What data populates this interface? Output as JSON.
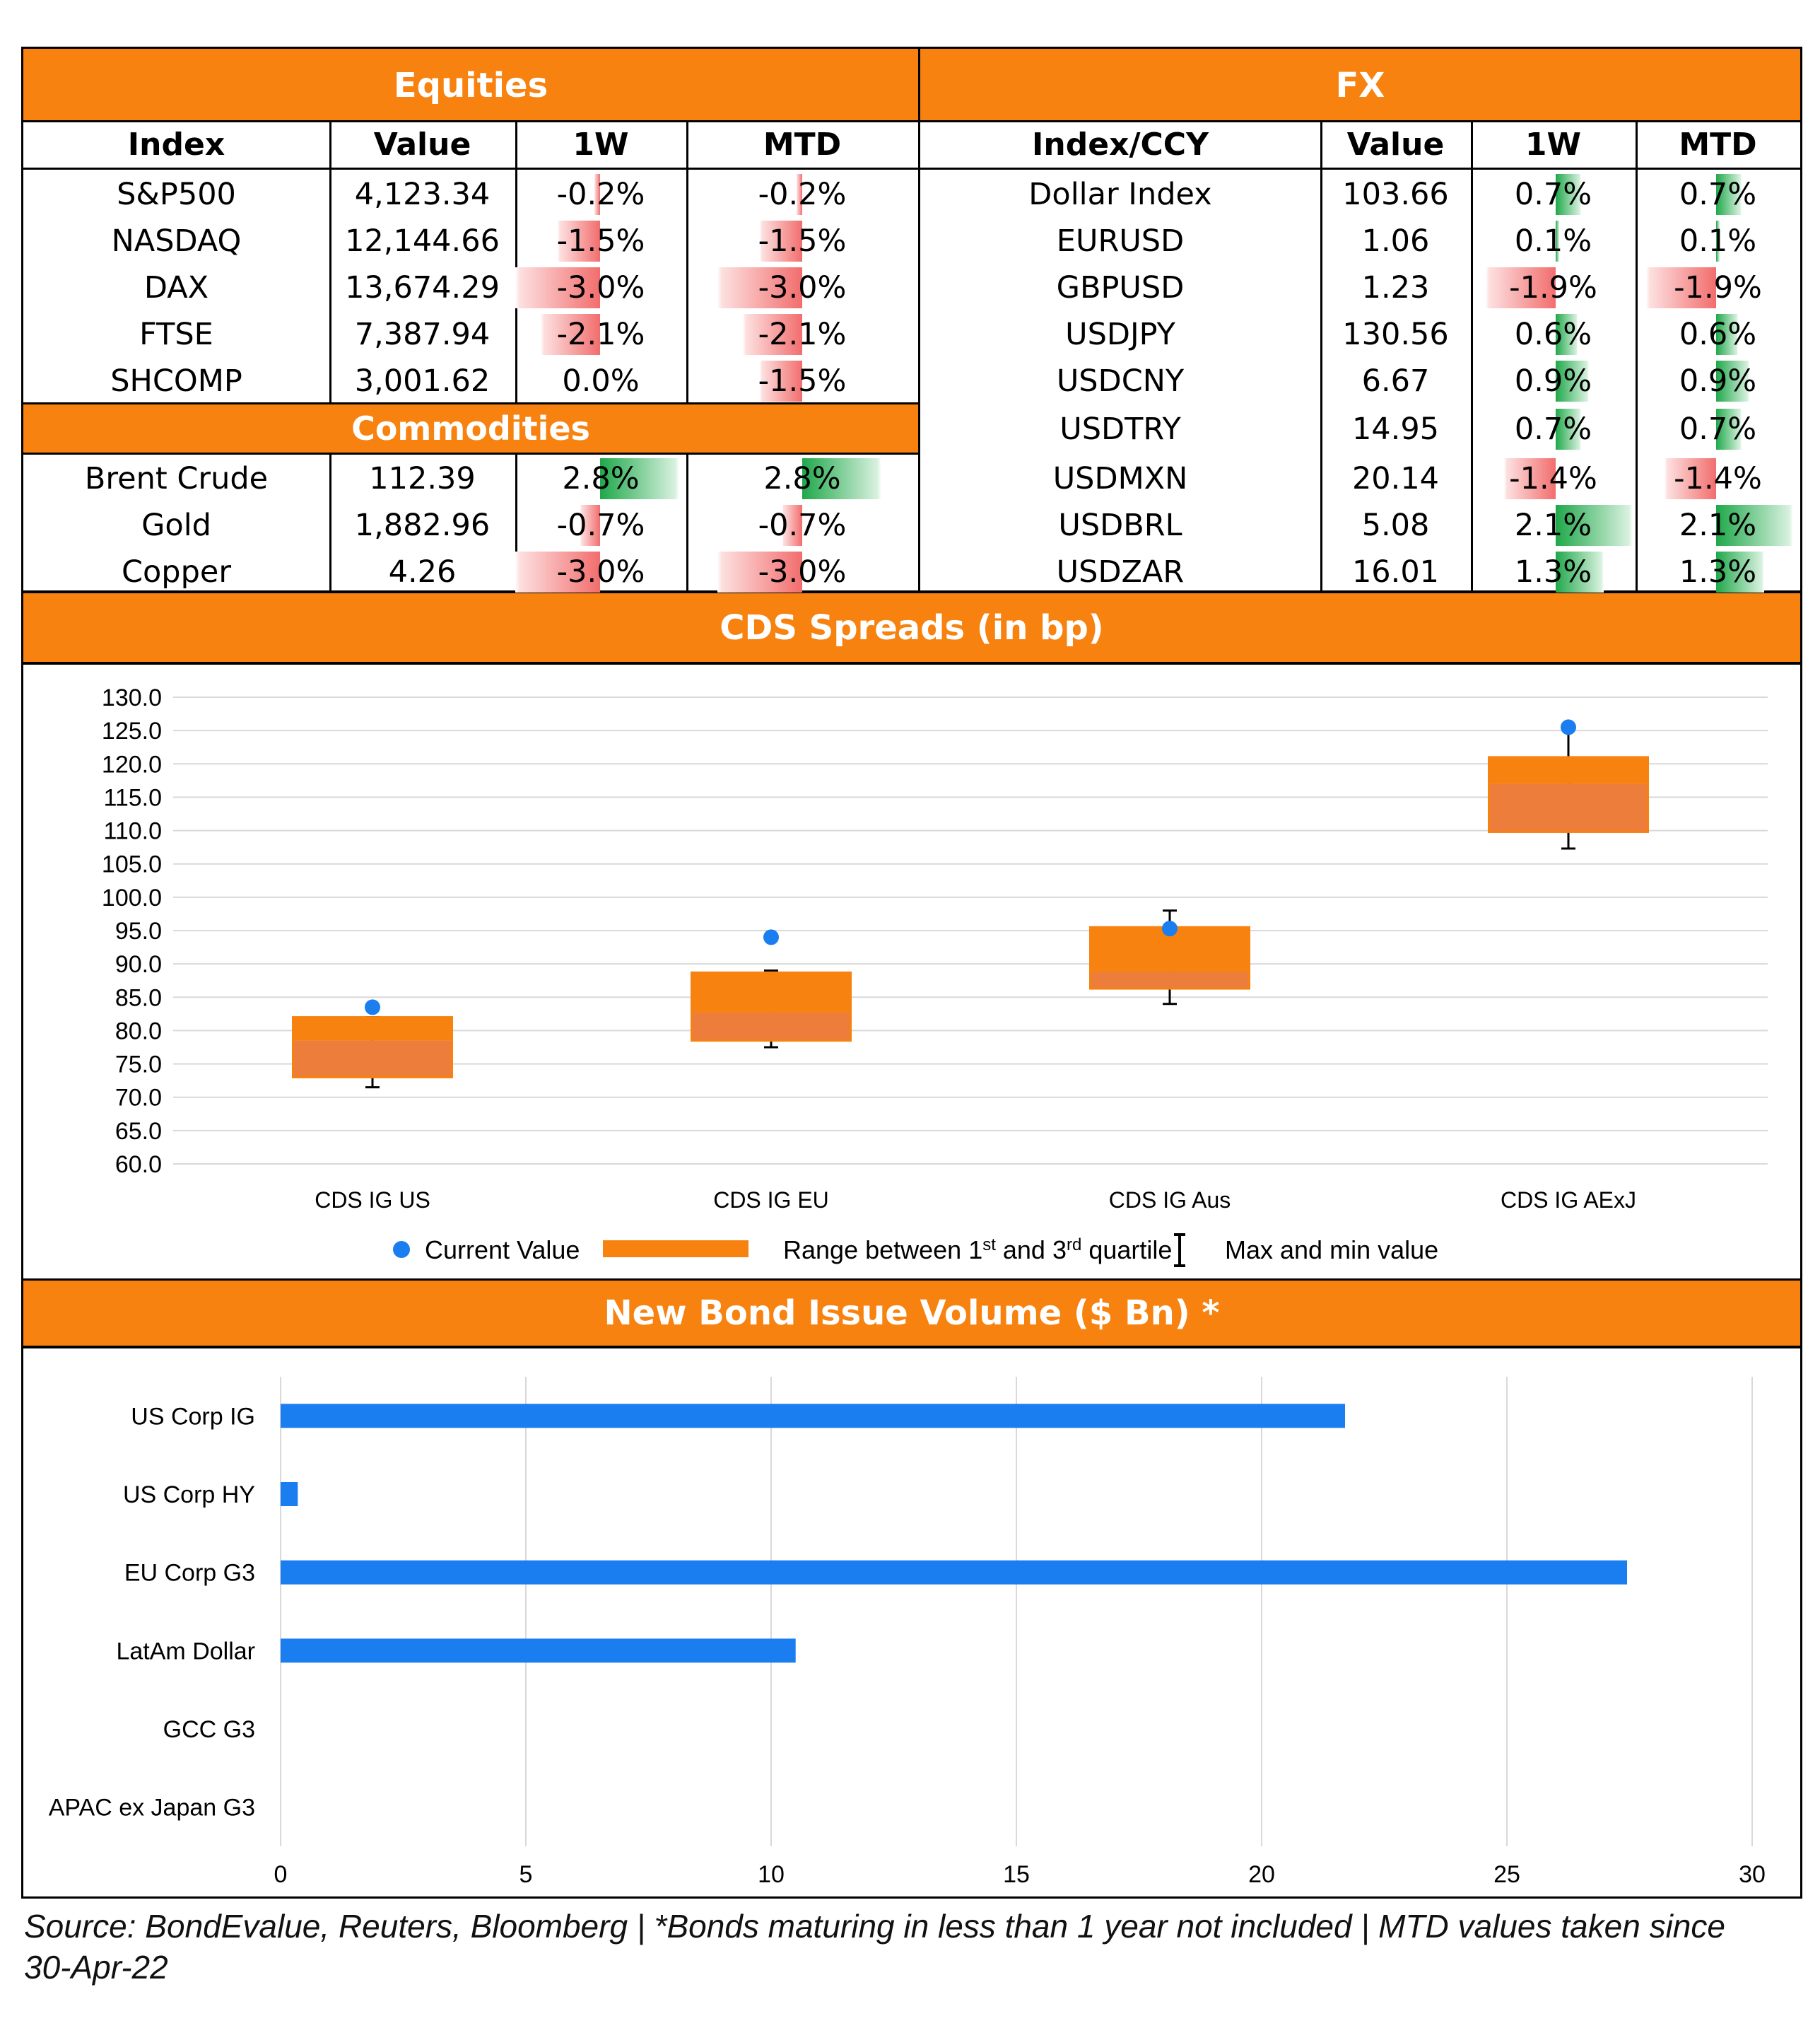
{
  "equities": {
    "title": "Equities",
    "headers": [
      "Index",
      "Value",
      "1W",
      "MTD"
    ],
    "rows": [
      {
        "name": "S&P500",
        "value": "4,123.34",
        "w1": "-0.2%",
        "mtd": "-0.2%",
        "w1_num": -0.2,
        "mtd_num": -0.2
      },
      {
        "name": "NASDAQ",
        "value": "12,144.66",
        "w1": "-1.5%",
        "mtd": "-1.5%",
        "w1_num": -1.5,
        "mtd_num": -1.5
      },
      {
        "name": "DAX",
        "value": "13,674.29",
        "w1": "-3.0%",
        "mtd": "-3.0%",
        "w1_num": -3.0,
        "mtd_num": -3.0
      },
      {
        "name": "FTSE",
        "value": "7,387.94",
        "w1": "-2.1%",
        "mtd": "-2.1%",
        "w1_num": -2.1,
        "mtd_num": -2.1
      },
      {
        "name": "SHCOMP",
        "value": "3,001.62",
        "w1": "0.0%",
        "mtd": "-1.5%",
        "w1_num": 0.0,
        "mtd_num": -1.5
      }
    ]
  },
  "commodities": {
    "title": "Commodities",
    "rows": [
      {
        "name": "Brent Crude",
        "value": "112.39",
        "w1": "2.8%",
        "mtd": "2.8%",
        "w1_num": 2.8,
        "mtd_num": 2.8
      },
      {
        "name": "Gold",
        "value": "1,882.96",
        "w1": "-0.7%",
        "mtd": "-0.7%",
        "w1_num": -0.7,
        "mtd_num": -0.7
      },
      {
        "name": "Copper",
        "value": "4.26",
        "w1": "-3.0%",
        "mtd": "-3.0%",
        "w1_num": -3.0,
        "mtd_num": -3.0
      }
    ]
  },
  "fx": {
    "title": "FX",
    "headers": [
      "Index/CCY",
      "Value",
      "1W",
      "MTD"
    ],
    "rows": [
      {
        "name": "Dollar Index",
        "value": "103.66",
        "w1": "0.7%",
        "mtd": "0.7%",
        "w1_num": 0.7,
        "mtd_num": 0.7
      },
      {
        "name": "EURUSD",
        "value": "1.06",
        "w1": "0.1%",
        "mtd": "0.1%",
        "w1_num": 0.1,
        "mtd_num": 0.1
      },
      {
        "name": "GBPUSD",
        "value": "1.23",
        "w1": "-1.9%",
        "mtd": "-1.9%",
        "w1_num": -1.9,
        "mtd_num": -1.9
      },
      {
        "name": "USDJPY",
        "value": "130.56",
        "w1": "0.6%",
        "mtd": "0.6%",
        "w1_num": 0.6,
        "mtd_num": 0.6
      },
      {
        "name": "USDCNY",
        "value": "6.67",
        "w1": "0.9%",
        "mtd": "0.9%",
        "w1_num": 0.9,
        "mtd_num": 0.9
      },
      {
        "name": "USDTRY",
        "value": "14.95",
        "w1": "0.7%",
        "mtd": "0.7%",
        "w1_num": 0.7,
        "mtd_num": 0.7
      },
      {
        "name": "USDMXN",
        "value": "20.14",
        "w1": "-1.4%",
        "mtd": "-1.4%",
        "w1_num": -1.4,
        "mtd_num": -1.4
      },
      {
        "name": "USDBRL",
        "value": "5.08",
        "w1": "2.1%",
        "mtd": "2.1%",
        "w1_num": 2.1,
        "mtd_num": 2.1
      },
      {
        "name": "USDZAR",
        "value": "16.01",
        "w1": "1.3%",
        "mtd": "1.3%",
        "w1_num": 1.3,
        "mtd_num": 1.3
      }
    ]
  },
  "chart_data": [
    {
      "type": "box",
      "title": "CDS Spreads (in bp)",
      "categories": [
        "CDS IG US",
        "CDS IG EU",
        "CDS IG Aus",
        "CDS IG AExJ"
      ],
      "ylim": [
        60,
        130
      ],
      "yticks": [
        "130.0",
        "125.0",
        "120.0",
        "115.0",
        "110.0",
        "105.0",
        "100.0",
        "95.0",
        "90.0",
        "85.0",
        "80.0",
        "75.0",
        "70.0",
        "65.0",
        "60.0"
      ],
      "grid": true,
      "legend_position": "bottom",
      "series": [
        {
          "name": "Current Value",
          "values": [
            83.5,
            94.0,
            95.3,
            125.5
          ]
        },
        {
          "name": "Range between 1st and 3rd quartile",
          "q1": [
            73.0,
            78.5,
            86.3,
            109.8
          ],
          "median": [
            78.5,
            82.7,
            88.8,
            117.0
          ],
          "q3": [
            82.0,
            88.7,
            95.5,
            121.0
          ]
        },
        {
          "name": "Max and min value",
          "min": [
            71.5,
            77.5,
            84.0,
            107.3
          ],
          "max": [
            82.0,
            89.0,
            98.0,
            125.5
          ]
        }
      ],
      "legend": {
        "current": "Current Value",
        "range_pre": "Range between 1",
        "range_sup1": "st",
        "range_mid": " and 3",
        "range_sup2": "rd",
        "range_post": " quartile",
        "maxmin": "Max and min value"
      },
      "colors": {
        "point": "#1a7df0",
        "box": "#f7820f",
        "box_lower": "#ec7d3a",
        "whisker": "#000000",
        "grid": "#d9d9d9"
      }
    },
    {
      "type": "bar",
      "orientation": "horizontal",
      "title": "New Bond Issue Volume ($ Bn) *",
      "categories": [
        "US Corp IG",
        "US Corp HY",
        "EU Corp G3",
        "LatAm Dollar",
        "GCC G3",
        "APAC ex Japan G3"
      ],
      "values": [
        21.7,
        0.35,
        27.45,
        10.5,
        0,
        0
      ],
      "xlim": [
        0,
        30
      ],
      "xticks": [
        "0",
        "5",
        "10",
        "15",
        "20",
        "25",
        "30"
      ],
      "grid": true,
      "colors": {
        "bar": "#1a7df0",
        "grid": "#d9d9d9"
      }
    }
  ],
  "footer": "Source: BondEvalue, Reuters, Bloomberg | *Bonds maturing in less than 1 year not included | MTD values taken since 30-Apr-22"
}
